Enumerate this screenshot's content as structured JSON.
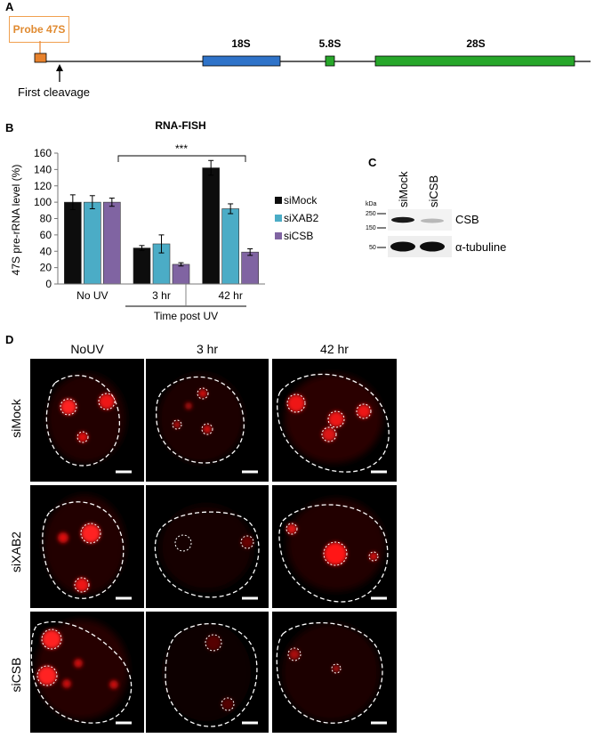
{
  "panelA": {
    "letter": "A",
    "probe_label": "Probe 47S",
    "cleavage_label": "First cleavage",
    "segments": {
      "s18": "18S",
      "s58": "5.8S",
      "s28": "28S"
    },
    "colors": {
      "probe": "#e8822c",
      "s18": "#2f73c9",
      "s58": "#27a72a",
      "s28": "#27a72a"
    }
  },
  "panelB": {
    "letter": "B",
    "significance": "***",
    "chart_data": {
      "type": "bar",
      "title": "RNA-FISH",
      "ylabel": "47S pre-rRNA level (%)",
      "xlabel": "Time post UV",
      "ylim": [
        0,
        160
      ],
      "yticks": [
        0,
        20,
        40,
        60,
        80,
        100,
        120,
        140,
        160
      ],
      "categories": [
        "No UV",
        "3 hr",
        "42 hr"
      ],
      "series": [
        {
          "name": "siMock",
          "color": "#0d0d0d",
          "values": [
            100,
            44,
            142
          ],
          "errors": [
            9,
            3,
            9
          ]
        },
        {
          "name": "siXAB2",
          "color": "#4bacc6",
          "values": [
            100,
            49,
            92
          ],
          "errors": [
            8,
            11,
            6
          ]
        },
        {
          "name": "siCSB",
          "color": "#8064a2",
          "values": [
            100,
            24,
            39
          ],
          "errors": [
            5,
            2,
            4
          ]
        }
      ]
    }
  },
  "panelC": {
    "letter": "C",
    "lanes": [
      "siMock",
      "siCSB"
    ],
    "kda_label": "kDa",
    "markers": [
      "250",
      "150",
      "50"
    ],
    "bands": [
      "CSB",
      "α-tubuline"
    ]
  },
  "panelD": {
    "letter": "D",
    "columns": [
      "NoUV",
      "3 hr",
      "42 hr"
    ],
    "rows": [
      "siMock",
      "siXAB2",
      "siCSB"
    ]
  }
}
